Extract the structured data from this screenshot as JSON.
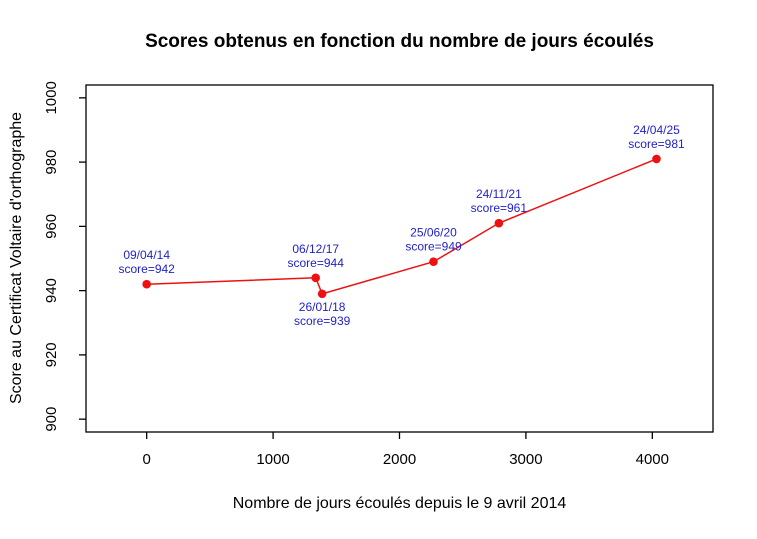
{
  "chart_data": {
    "type": "line",
    "title": "Scores obtenus en fonction du nombre de jours écoulés",
    "xlabel": "Nombre de jours écoulés depuis le 9 avril 2014",
    "ylabel": "Score au Certificat Voltaire d'orthographe",
    "x_ticks": [
      0,
      1000,
      2000,
      3000,
      4000
    ],
    "y_ticks": [
      900,
      920,
      940,
      960,
      980,
      1000
    ],
    "xlim": [
      -480,
      4480
    ],
    "ylim": [
      896,
      1004
    ],
    "grid": false,
    "legend": "none",
    "line_color": "#ee1111",
    "label_color": "#2222cc",
    "axis_color": "#000000",
    "background": "#ffffff",
    "points": [
      {
        "date": "09/04/14",
        "days": 0,
        "score": 942,
        "score_label": "score=942",
        "label_position": "above"
      },
      {
        "date": "06/12/17",
        "days": 1337,
        "score": 944,
        "score_label": "score=944",
        "label_position": "above"
      },
      {
        "date": "26/01/18",
        "days": 1388,
        "score": 939,
        "score_label": "score=939",
        "label_position": "below"
      },
      {
        "date": "25/06/20",
        "days": 2269,
        "score": 949,
        "score_label": "score=949",
        "label_position": "above"
      },
      {
        "date": "24/11/21",
        "days": 2786,
        "score": 961,
        "score_label": "score=961",
        "label_position": "above"
      },
      {
        "date": "24/04/25",
        "days": 4033,
        "score": 981,
        "score_label": "score=981",
        "label_position": "above"
      }
    ]
  }
}
